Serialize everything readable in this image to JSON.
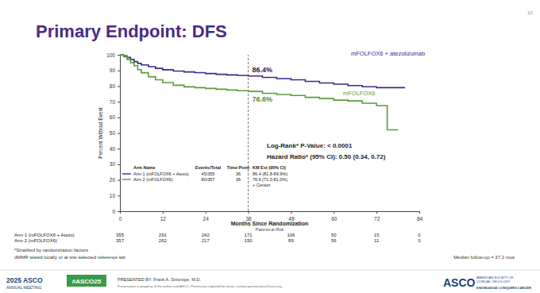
{
  "slide": {
    "title": "Primary Endpoint: DFS",
    "page": "10",
    "footnotes": [
      "*Stratified by randomization factors",
      "dMMR tested locally or at site-selected reference lab"
    ],
    "median_follow_up": "Median follow-up = 37.2 mos",
    "footer": {
      "meeting_year": "2025 ASCO",
      "meeting": "ANNUAL MEETING",
      "hashtag": "#ASCO25",
      "presenter": "PRESENTED BY: Frank A. Sinicrope, M.D.",
      "rights": "Presentation is property of the author and ASCO. Permission required for reuse; contact permissions@asco.org.",
      "logo": "ASCO",
      "society": [
        "AMERICAN SOCIETY OF",
        "CLINICAL ONCOLOGY"
      ],
      "tagline": "KNOWLEDGE CONQUERS CANCER"
    }
  },
  "chart_data": {
    "type": "step",
    "x_label": "Months Since Randomization",
    "y_label": "Percent Without Event",
    "x": [
      0,
      1,
      2,
      3,
      4,
      5,
      6,
      8,
      10,
      12,
      15,
      18,
      21,
      24,
      27,
      30,
      33,
      36,
      40,
      44,
      48,
      52,
      56,
      60,
      64,
      68,
      72,
      75,
      78,
      80
    ],
    "series": [
      {
        "name": "mFOLFOX6 + atezolizumab",
        "color": "#3b2a8c",
        "values": [
          100,
          99.4,
          98.3,
          97,
          95.6,
          94.5,
          93.5,
          92.4,
          91.3,
          90.4,
          89.6,
          89,
          88.6,
          88,
          87.5,
          87.1,
          86.8,
          86.4,
          85.5,
          84.8,
          84,
          83,
          82,
          81.2,
          80.3,
          79.6,
          79,
          79,
          79,
          79
        ]
      },
      {
        "name": "mFOLFOX6",
        "color": "#5c9a3c",
        "values": [
          100,
          98.8,
          97,
          95,
          93,
          90.5,
          88.5,
          86,
          84,
          82.2,
          80.5,
          79.5,
          79,
          78.5,
          78,
          77.5,
          77,
          76.6,
          75.4,
          74.6,
          74,
          72.8,
          72,
          71,
          70.5,
          69,
          67.5,
          52,
          52,
          null
        ]
      }
    ],
    "xlim": [
      0,
      84
    ],
    "xticks": [
      0,
      12,
      24,
      36,
      48,
      60,
      72,
      84
    ],
    "ylim": [
      0,
      100
    ],
    "yticks": [
      0,
      10,
      20,
      30,
      40,
      50,
      60,
      70,
      80,
      90,
      100
    ],
    "grid": false,
    "vline": 36,
    "annotations": [
      {
        "text": "86.4%",
        "value": 86.4,
        "color": "#2a2050"
      },
      {
        "text": "76.6%",
        "value": 76.6,
        "color": "#4f8a32"
      }
    ],
    "stats": [
      "Log-Rank* P-Value: < 0.0001",
      "Hazard Ratio* (95% CI): 0.50 (0.34, 0.72)"
    ],
    "km_table": {
      "columns": [
        "Arm Name",
        "Events/Total",
        "Time-Point",
        "KM Est (95% CI)"
      ],
      "rows": [
        [
          "Arm 1 (mFOLFOX6 + Atezo)",
          "45/355",
          "36",
          "86.4 (81.8-89.9%)"
        ],
        [
          "Arm 2 (mFOLFOX6)",
          "80/357",
          "36",
          "76.6 (71.3-81.0%)"
        ]
      ],
      "censor_note": "+ Censor"
    },
    "risk_table": {
      "title": "Patients-at-Risk",
      "rows": [
        {
          "label": "Arm 1 (mFOLFOX6 + Atezo)",
          "values": [
            355,
            291,
            242,
            171,
            106,
            50,
            15,
            0
          ]
        },
        {
          "label": "Arm 2 (mFOLFOX6)",
          "values": [
            357,
            262,
            217,
            150,
            89,
            56,
            11,
            0
          ]
        }
      ]
    }
  }
}
